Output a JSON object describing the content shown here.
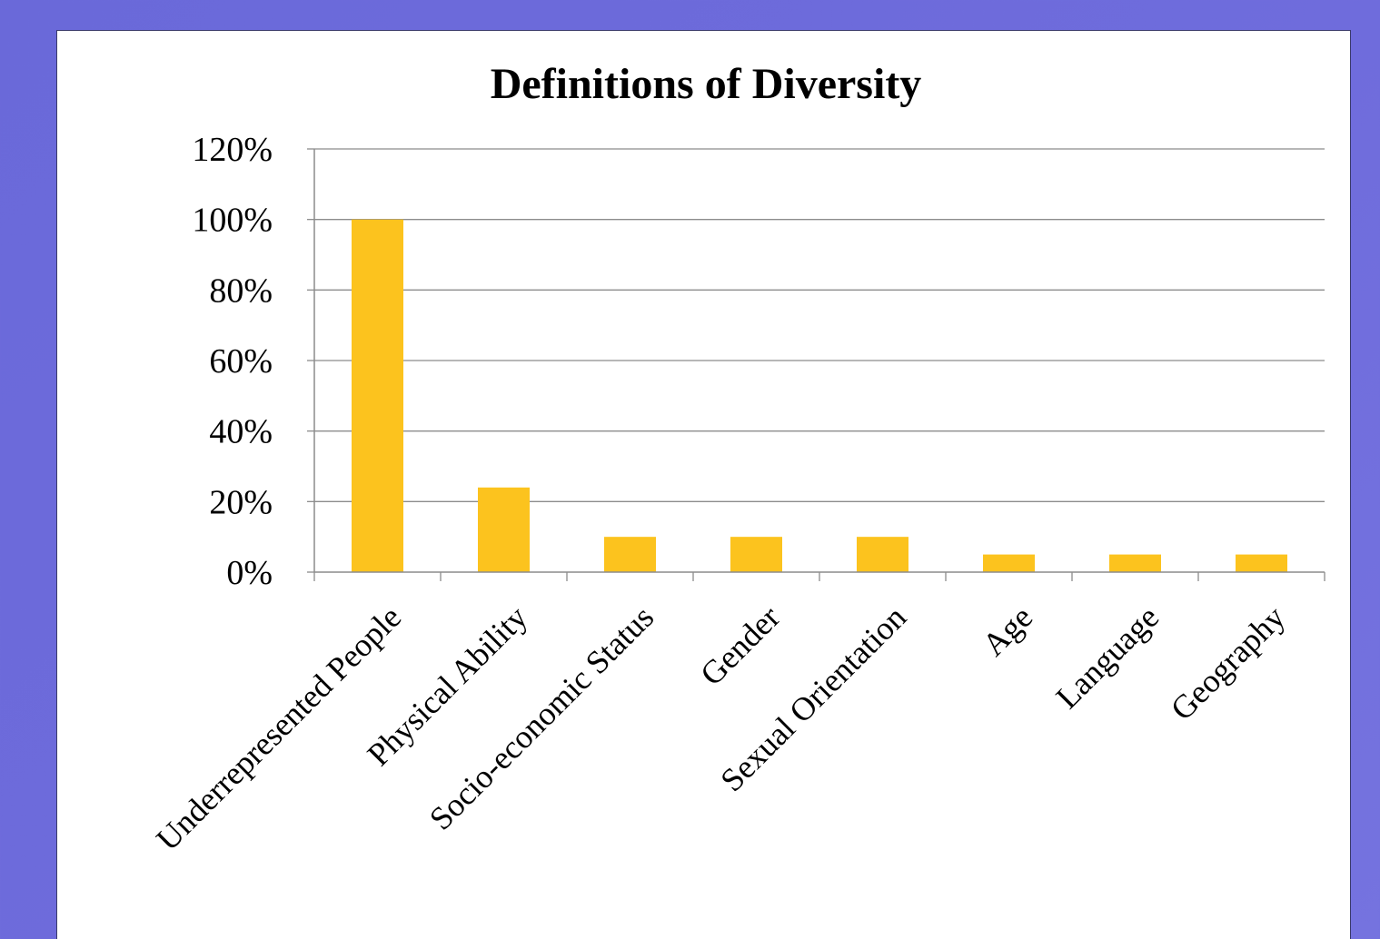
{
  "chart_data": {
    "type": "bar",
    "title": "Definitions of Diversity",
    "xlabel": "",
    "ylabel": "",
    "categories": [
      "Underrepresented People",
      "Physical Ability",
      "Socio-economic Status",
      "Gender",
      "Sexual Orientation",
      "Age",
      "Language",
      "Geography"
    ],
    "values": [
      100,
      24,
      10,
      10,
      10,
      5,
      5,
      5
    ],
    "ylim": [
      0,
      120
    ],
    "yticks": [
      0,
      20,
      40,
      60,
      80,
      100,
      120
    ],
    "ytick_suffix": "%",
    "grid": true,
    "legend": "none",
    "bar_color": "#fcc31e",
    "gridline_color": "#8c8c8c"
  }
}
